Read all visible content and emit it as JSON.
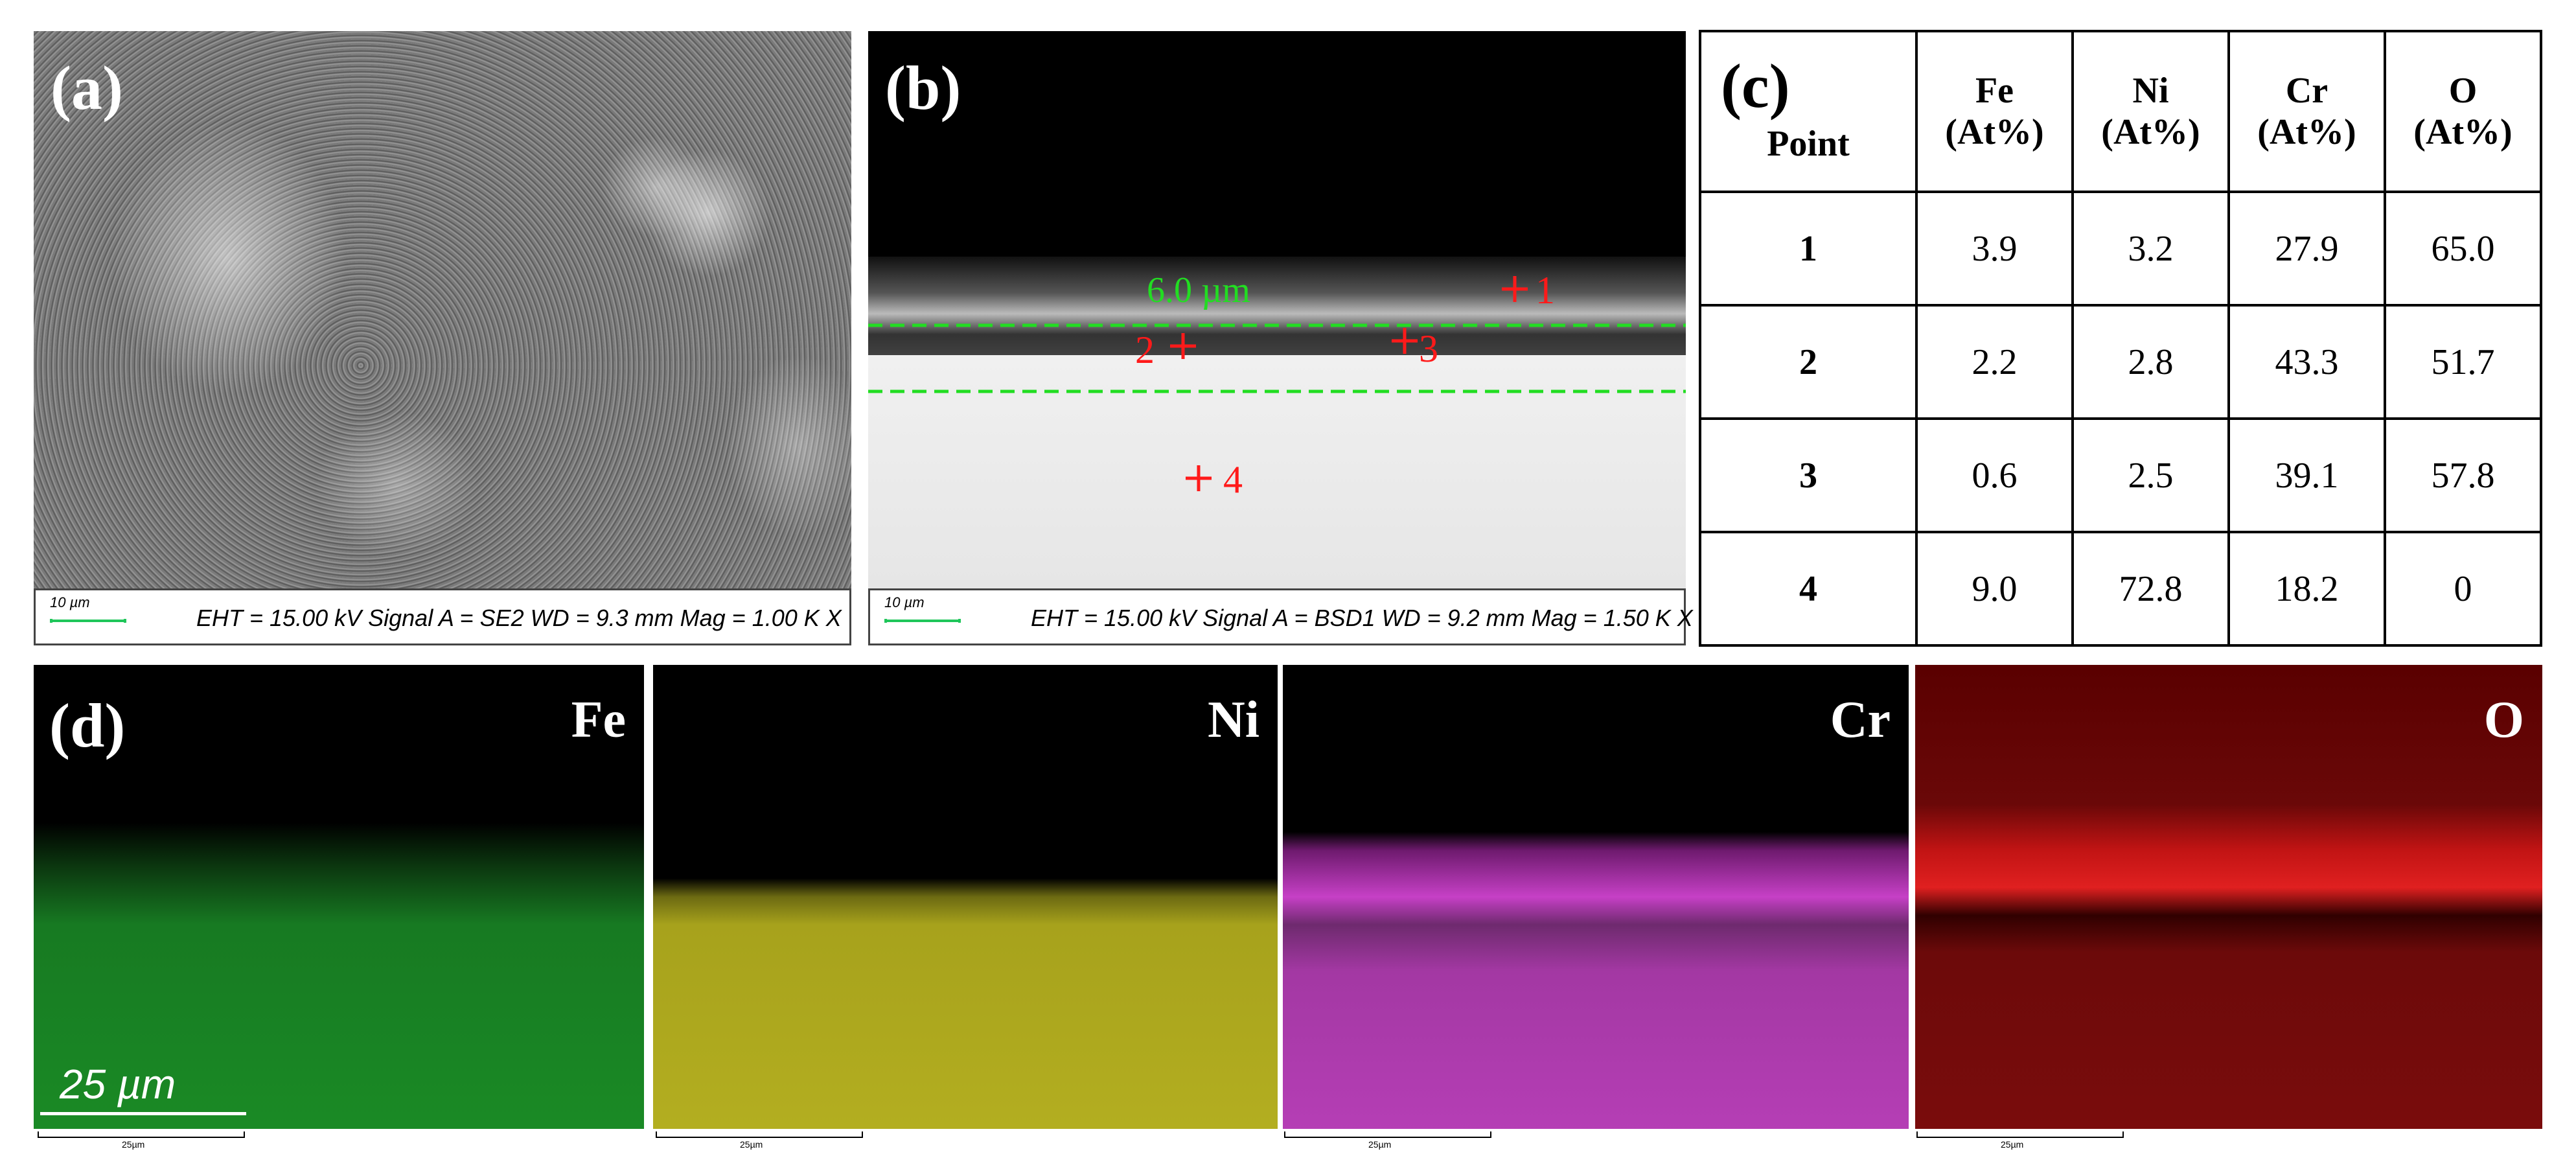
{
  "panel_a": {
    "label": "(a)",
    "scale_label": "10 µm",
    "info": "EHT = 15.00 kV  Signal A = SE2  WD = 9.3 mm Mag = 1.00 K X"
  },
  "panel_b": {
    "label": "(b)",
    "thickness_label": "6.0 µm",
    "points": [
      "1",
      "2",
      "3",
      "4"
    ],
    "scale_label": "10 µm",
    "info": "EHT = 15.00 kV  Signal A = BSD1  WD = 9.2 mm Mag = 1.50 K X",
    "marker_color": "#ff1a1a",
    "line_color": "#22dd22"
  },
  "table_c": {
    "label": "(c)",
    "point_header": "Point",
    "headers": [
      {
        "el": "Fe",
        "unit": "(At%)"
      },
      {
        "el": "Ni",
        "unit": "(At%)"
      },
      {
        "el": "Cr",
        "unit": "(At%)"
      },
      {
        "el": "O",
        "unit": "(At%)"
      }
    ],
    "rows": [
      {
        "point": "1",
        "values": [
          "3.9",
          "3.2",
          "27.9",
          "65.0"
        ]
      },
      {
        "point": "2",
        "values": [
          "2.2",
          "2.8",
          "43.3",
          "51.7"
        ]
      },
      {
        "point": "3",
        "values": [
          "0.6",
          "2.5",
          "39.1",
          "57.8"
        ]
      },
      {
        "point": "4",
        "values": [
          "9.0",
          "72.8",
          "18.2",
          "0"
        ]
      }
    ]
  },
  "panel_d": {
    "label": "(d)",
    "scale_text": "25 µm",
    "mini_scale": "25µm",
    "maps": [
      {
        "element": "Fe",
        "color": "#1a8a25"
      },
      {
        "element": "Ni",
        "color": "#b3ae20"
      },
      {
        "element": "Cr",
        "color": "#c640c6"
      },
      {
        "element": "O",
        "color": "#e02020"
      }
    ]
  }
}
